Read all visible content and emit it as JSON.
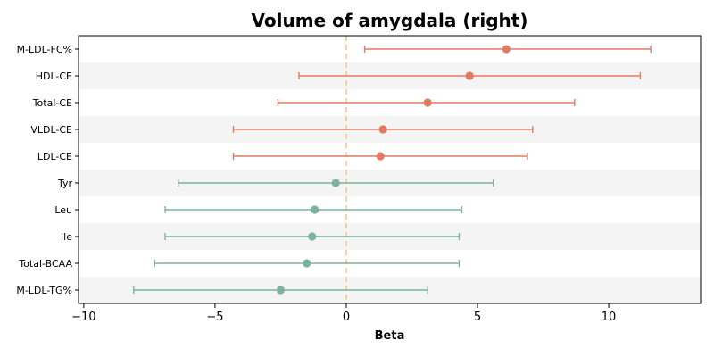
{
  "chart_data": {
    "type": "forest",
    "title": "Volume of amygdala (right)",
    "xlabel": "Beta",
    "xlim": [
      -10.2,
      13.5
    ],
    "xticks": [
      -10,
      -5,
      0,
      5,
      10
    ],
    "xtick_labels": [
      "−10",
      "−5",
      "0",
      "5",
      "10"
    ],
    "reference_line_x": 0,
    "rows": [
      {
        "label": "M-LDL-FC%",
        "beta": 6.1,
        "lo": 0.7,
        "hi": 11.6,
        "group": "lipid"
      },
      {
        "label": "HDL-CE",
        "beta": 4.7,
        "lo": -1.8,
        "hi": 11.2,
        "group": "lipid"
      },
      {
        "label": "Total-CE",
        "beta": 3.1,
        "lo": -2.6,
        "hi": 8.7,
        "group": "lipid"
      },
      {
        "label": "VLDL-CE",
        "beta": 1.4,
        "lo": -4.3,
        "hi": 7.1,
        "group": "lipid"
      },
      {
        "label": "LDL-CE",
        "beta": 1.3,
        "lo": -4.3,
        "hi": 6.9,
        "group": "lipid"
      },
      {
        "label": "Tyr",
        "beta": -0.4,
        "lo": -6.4,
        "hi": 5.6,
        "group": "amino"
      },
      {
        "label": "Leu",
        "beta": -1.2,
        "lo": -6.9,
        "hi": 4.4,
        "group": "amino"
      },
      {
        "label": "Ile",
        "beta": -1.3,
        "lo": -6.9,
        "hi": 4.3,
        "group": "amino"
      },
      {
        "label": "Total-BCAA",
        "beta": -1.5,
        "lo": -7.3,
        "hi": 4.3,
        "group": "amino"
      },
      {
        "label": "M-LDL-TG%",
        "beta": -2.5,
        "lo": -8.1,
        "hi": 3.1,
        "group": "amino"
      }
    ],
    "colors": {
      "lipid": "#e07b62",
      "amino": "#7db39c",
      "reference_line": "#f5c98a",
      "band": "#f4f4f4"
    },
    "grid": false,
    "alternating_row_bands": true
  }
}
